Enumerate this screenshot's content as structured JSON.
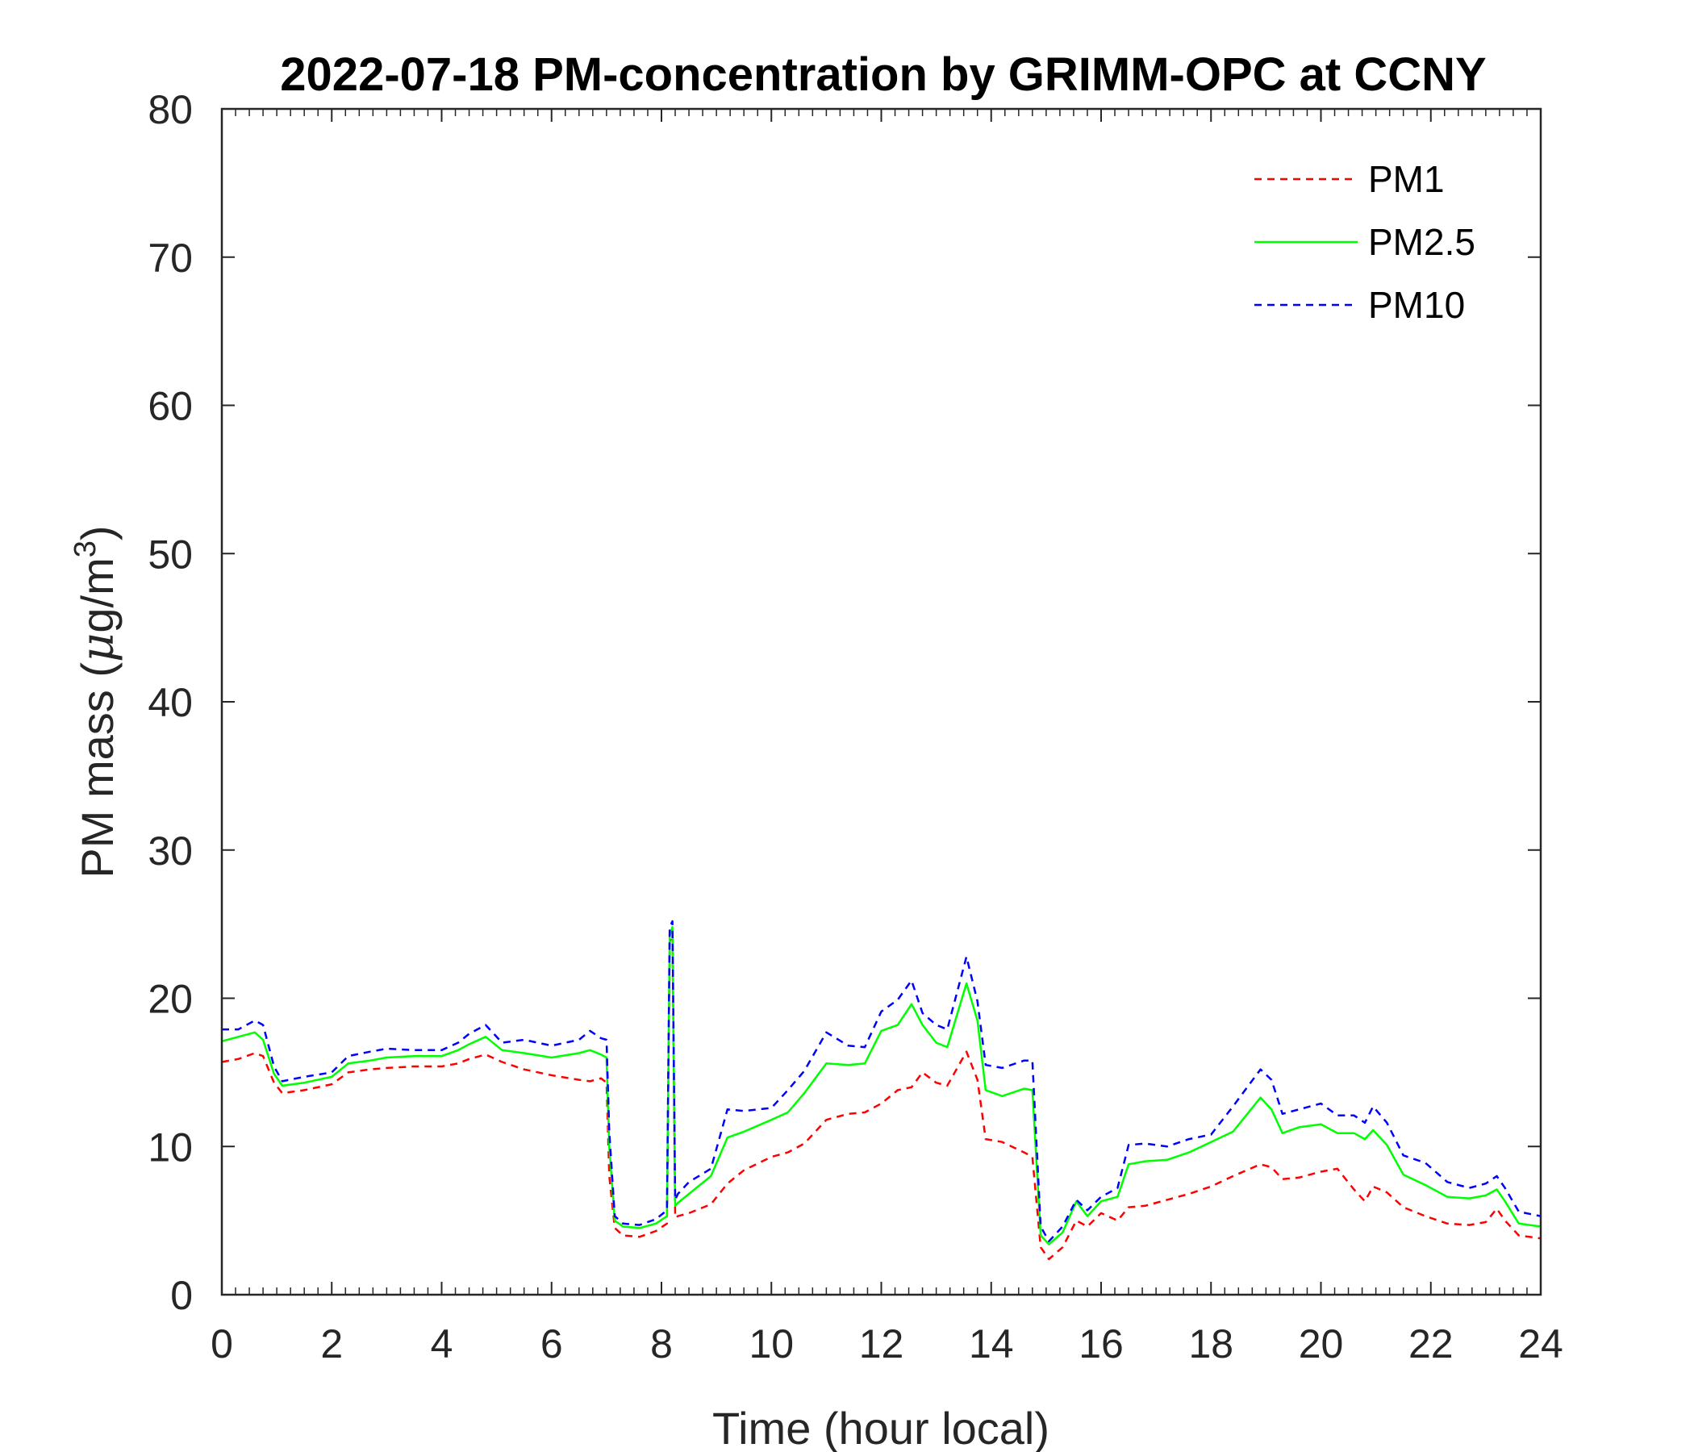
{
  "chart_data": {
    "type": "line",
    "title": "2022-07-18 PM-concentration by GRIMM-OPC at CCNY",
    "xlabel": "Time (hour local)",
    "ylabel_prefix": "PM mass (",
    "ylabel_mu": "μ",
    "ylabel_mid": "g/m",
    "ylabel_sup": "3",
    "ylabel_suffix": ")",
    "xlim": [
      0,
      24
    ],
    "ylim": [
      0,
      80
    ],
    "xticks": [
      "0",
      "2",
      "4",
      "6",
      "8",
      "10",
      "12",
      "14",
      "16",
      "18",
      "20",
      "22",
      "24"
    ],
    "yticks": [
      "0",
      "10",
      "20",
      "30",
      "40",
      "50",
      "60",
      "70",
      "80"
    ],
    "grid": false,
    "legend_position": "top-right",
    "x": [
      0,
      0.3,
      0.6,
      0.75,
      0.95,
      1.1,
      1.5,
      2,
      2.3,
      2.7,
      3,
      3.5,
      4,
      4.3,
      4.5,
      4.8,
      5.1,
      5.5,
      6,
      6.5,
      6.7,
      6.9,
      7.0,
      7.05,
      7.15,
      7.3,
      7.6,
      7.9,
      8.1,
      8.15,
      8.2,
      8.25,
      8.3,
      8.5,
      8.9,
      9.2,
      9.5,
      10,
      10.3,
      10.6,
      11,
      11.4,
      11.7,
      12,
      12.3,
      12.55,
      12.75,
      13,
      13.2,
      13.55,
      13.75,
      13.9,
      14.2,
      14.6,
      14.75,
      14.9,
      15.05,
      15.3,
      15.55,
      15.75,
      16,
      16.3,
      16.5,
      16.8,
      17.2,
      17.6,
      18,
      18.4,
      18.9,
      19.1,
      19.3,
      19.6,
      20,
      20.3,
      20.6,
      20.8,
      20.95,
      21.2,
      21.5,
      21.9,
      22.3,
      22.7,
      23.0,
      23.2,
      23.35,
      23.6,
      24
    ],
    "series": [
      {
        "name": "PM1",
        "color": "#ff0000",
        "dash": "dashed",
        "values": [
          15.7,
          15.9,
          16.3,
          16.1,
          14.3,
          13.6,
          13.8,
          14.2,
          15.0,
          15.2,
          15.3,
          15.4,
          15.4,
          15.6,
          15.9,
          16.2,
          15.7,
          15.2,
          14.8,
          14.5,
          14.4,
          14.6,
          14.3,
          8.0,
          4.5,
          4.0,
          3.9,
          4.3,
          4.8,
          23.8,
          24.3,
          5.2,
          5.3,
          5.5,
          6.1,
          7.5,
          8.4,
          9.3,
          9.6,
          10.2,
          11.8,
          12.2,
          12.3,
          12.9,
          13.8,
          14.0,
          15.0,
          14.3,
          14.1,
          16.4,
          14.5,
          10.5,
          10.3,
          9.6,
          9.3,
          3.2,
          2.4,
          3.2,
          5.0,
          4.6,
          5.5,
          5.0,
          5.9,
          6.0,
          6.4,
          6.8,
          7.3,
          8.0,
          8.8,
          8.6,
          7.8,
          7.9,
          8.3,
          8.5,
          7.1,
          6.3,
          7.3,
          6.9,
          5.9,
          5.3,
          4.8,
          4.7,
          4.9,
          5.8,
          5.0,
          4.0,
          3.8
        ]
      },
      {
        "name": "PM2.5",
        "color": "#00ff00",
        "dash": "solid",
        "values": [
          17.1,
          17.4,
          17.7,
          17.2,
          14.9,
          14.1,
          14.3,
          14.7,
          15.6,
          15.8,
          16.0,
          16.1,
          16.1,
          16.5,
          16.9,
          17.4,
          16.5,
          16.3,
          16.0,
          16.3,
          16.5,
          16.2,
          16.0,
          10.0,
          5.0,
          4.6,
          4.5,
          4.8,
          5.3,
          24.2,
          24.8,
          6.0,
          6.2,
          6.8,
          8.0,
          10.6,
          11.0,
          11.8,
          12.3,
          13.6,
          15.6,
          15.5,
          15.6,
          17.8,
          18.2,
          19.6,
          18.2,
          17.0,
          16.7,
          21.0,
          18.5,
          13.8,
          13.4,
          13.9,
          13.8,
          4.0,
          3.4,
          4.2,
          6.3,
          5.3,
          6.3,
          6.6,
          8.8,
          9.0,
          9.1,
          9.6,
          10.3,
          11.0,
          13.3,
          12.5,
          10.9,
          11.3,
          11.5,
          10.9,
          10.9,
          10.5,
          11.1,
          10.1,
          8.1,
          7.4,
          6.6,
          6.5,
          6.7,
          7.1,
          6.3,
          4.8,
          4.6
        ]
      },
      {
        "name": "PM10",
        "color": "#0000ff",
        "dash": "dashed",
        "values": [
          17.9,
          17.9,
          18.5,
          18.2,
          15.4,
          14.4,
          14.7,
          15.0,
          16.1,
          16.4,
          16.6,
          16.5,
          16.5,
          17.0,
          17.6,
          18.2,
          17.0,
          17.2,
          16.8,
          17.2,
          17.8,
          17.3,
          17.2,
          11.0,
          5.3,
          4.8,
          4.7,
          5.1,
          5.7,
          24.8,
          25.2,
          6.4,
          6.8,
          7.6,
          8.5,
          12.5,
          12.4,
          12.6,
          13.8,
          15.1,
          17.7,
          16.8,
          16.7,
          19.1,
          19.9,
          21.2,
          19.0,
          18.2,
          17.9,
          22.8,
          19.8,
          15.5,
          15.3,
          15.8,
          15.8,
          4.6,
          3.6,
          4.6,
          6.4,
          5.7,
          6.6,
          7.2,
          10.1,
          10.2,
          10.0,
          10.5,
          10.8,
          12.7,
          15.2,
          14.5,
          12.2,
          12.5,
          12.9,
          12.1,
          12.1,
          11.6,
          12.7,
          11.6,
          9.4,
          8.9,
          7.6,
          7.2,
          7.5,
          8.0,
          7.2,
          5.6,
          5.3
        ]
      }
    ]
  }
}
